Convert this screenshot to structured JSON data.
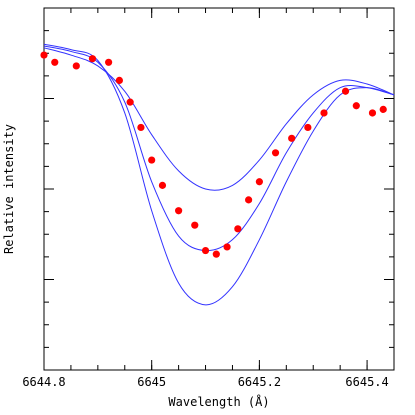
{
  "chart_data": {
    "type": "scatter",
    "title": "",
    "xlabel": "Wavelength (Å)",
    "ylabel": "Relative intensity",
    "xlim": [
      6644.8,
      6645.45
    ],
    "ylim": [
      0.0,
      1.0
    ],
    "x_ticks": [
      {
        "value": 6644.8,
        "label": "6644.8"
      },
      {
        "value": 6645.0,
        "label": "6645"
      },
      {
        "value": 6645.2,
        "label": "6645.2"
      },
      {
        "value": 6645.4,
        "label": "6645.4"
      }
    ],
    "x_minor_step": 0.05,
    "y_minor_step": 0.0625,
    "grid": false,
    "series": [
      {
        "kind": "line",
        "color": "#3333ff",
        "x": [
          6644.8,
          6644.85,
          6644.9,
          6644.95,
          6645.0,
          6645.05,
          6645.1,
          6645.15,
          6645.2,
          6645.25,
          6645.3,
          6645.35,
          6645.4,
          6645.45
        ],
        "y": [
          0.89,
          0.87,
          0.84,
          0.77,
          0.65,
          0.55,
          0.5,
          0.51,
          0.58,
          0.68,
          0.76,
          0.8,
          0.79,
          0.76
        ]
      },
      {
        "kind": "line",
        "color": "#3333ff",
        "x": [
          6644.8,
          6644.85,
          6644.9,
          6644.95,
          6645.0,
          6645.05,
          6645.1,
          6645.15,
          6645.2,
          6645.25,
          6645.3,
          6645.35,
          6645.4,
          6645.45
        ],
        "y": [
          0.895,
          0.88,
          0.85,
          0.74,
          0.52,
          0.37,
          0.33,
          0.36,
          0.46,
          0.6,
          0.71,
          0.78,
          0.78,
          0.76
        ]
      },
      {
        "kind": "line",
        "color": "#3333ff",
        "x": [
          6644.8,
          6644.85,
          6644.9,
          6644.95,
          6645.0,
          6645.05,
          6645.1,
          6645.15,
          6645.2,
          6645.25,
          6645.3,
          6645.35,
          6645.4,
          6645.45
        ],
        "y": [
          0.9,
          0.885,
          0.855,
          0.71,
          0.44,
          0.24,
          0.18,
          0.23,
          0.36,
          0.52,
          0.66,
          0.76,
          0.78,
          0.76
        ]
      },
      {
        "kind": "points",
        "color": "#ff0000",
        "x": [
          6644.8,
          6644.82,
          6644.86,
          6644.89,
          6644.92,
          6644.94,
          6644.96,
          6644.98,
          6645.0,
          6645.02,
          6645.05,
          6645.08,
          6645.1,
          6645.12,
          6645.14,
          6645.16,
          6645.18,
          6645.2,
          6645.23,
          6645.26,
          6645.29,
          6645.32,
          6645.36,
          6645.38,
          6645.41,
          6645.43
        ],
        "y": [
          0.87,
          0.85,
          0.84,
          0.86,
          0.85,
          0.8,
          0.74,
          0.67,
          0.58,
          0.51,
          0.44,
          0.4,
          0.33,
          0.32,
          0.34,
          0.39,
          0.47,
          0.52,
          0.6,
          0.64,
          0.67,
          0.71,
          0.77,
          0.73,
          0.71,
          0.72
        ]
      }
    ]
  }
}
